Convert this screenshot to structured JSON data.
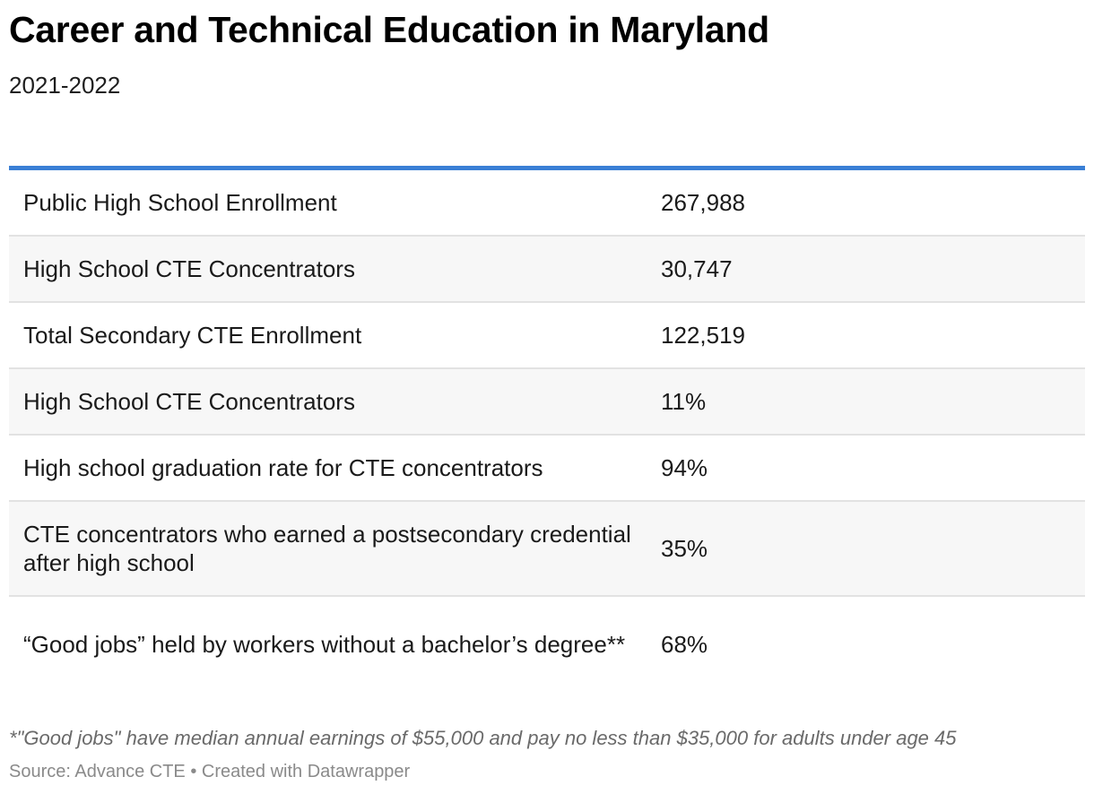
{
  "header": {
    "title": "Career and Technical Education in Maryland",
    "subtitle": "2021-2022"
  },
  "colors": {
    "accent_rule": "#3a7fd5",
    "row_stripe": "#f7f7f7"
  },
  "table": {
    "rows": [
      {
        "label": "Public High School Enrollment",
        "value": "267,988"
      },
      {
        "label": "High School CTE Concentrators",
        "value": "30,747"
      },
      {
        "label": "Total Secondary CTE Enrollment",
        "value": "122,519"
      },
      {
        "label": "High School CTE Concentrators",
        "value": "11%"
      },
      {
        "label": "High school graduation rate for CTE concentrators",
        "value": "94%"
      },
      {
        "label": "CTE concentrators who earned a postsecondary credential after high school",
        "value": "35%"
      },
      {
        "label": "“Good jobs” held by workers without a bachelor’s degree**",
        "value": "68%"
      }
    ]
  },
  "footer": {
    "note": "*\"Good jobs\" have median annual earnings of $55,000 and pay no less than $35,000 for adults under age 45",
    "source": "Source: Advance CTE • Created with Datawrapper"
  }
}
